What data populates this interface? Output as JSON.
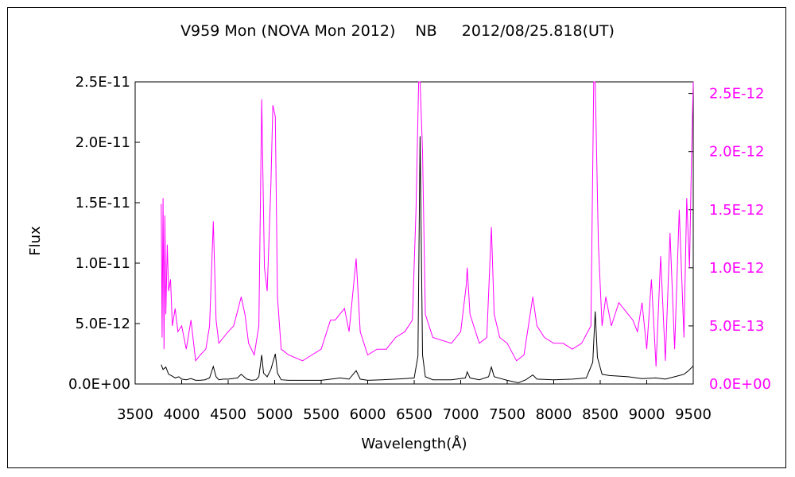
{
  "chart_data": {
    "type": "line",
    "title": "V959 Mon (NOVA Mon 2012)　 NB 　 2012/08/25.818(UT)",
    "xlabel": "Wavelength(Å)",
    "ylabel": "Flux",
    "xlim": [
      3500,
      9500
    ],
    "ylim": [
      0,
      2.5e-11
    ],
    "y2lim": [
      0,
      2.6e-12
    ],
    "x_ticks": [
      "3500",
      "4000",
      "4500",
      "5000",
      "5500",
      "6000",
      "6500",
      "7000",
      "7500",
      "8000",
      "8500",
      "9000",
      "9500"
    ],
    "y_ticks": [
      "0.0E+00",
      "5.0E-12",
      "1.0E-11",
      "1.5E-11",
      "2.0E-11",
      "2.5E-11"
    ],
    "y2_ticks": [
      "0.0E+00",
      "5.0E-13",
      "1.0E-12",
      "1.5E-12",
      "2.0E-12",
      "2.5E-12"
    ],
    "grid": false,
    "series": [
      {
        "axis": "left",
        "color": "#000000",
        "points": [
          [
            3780,
            1.6e-12
          ],
          [
            3800,
            1.2e-12
          ],
          [
            3830,
            1.4e-12
          ],
          [
            3860,
            8e-13
          ],
          [
            3890,
            7e-13
          ],
          [
            3930,
            5e-13
          ],
          [
            3970,
            6e-13
          ],
          [
            4000,
            4e-13
          ],
          [
            4050,
            3.5e-13
          ],
          [
            4100,
            4.5e-13
          ],
          [
            4150,
            3e-13
          ],
          [
            4200,
            3e-13
          ],
          [
            4250,
            3.5e-13
          ],
          [
            4300,
            5e-13
          ],
          [
            4340,
            1.45e-12
          ],
          [
            4370,
            6e-13
          ],
          [
            4400,
            3.5e-13
          ],
          [
            4450,
            4e-13
          ],
          [
            4500,
            4e-13
          ],
          [
            4600,
            5e-13
          ],
          [
            4640,
            8e-13
          ],
          [
            4700,
            4e-13
          ],
          [
            4750,
            3e-13
          ],
          [
            4800,
            3.5e-13
          ],
          [
            4830,
            6e-13
          ],
          [
            4861,
            2.4e-12
          ],
          [
            4880,
            9e-13
          ],
          [
            4920,
            6e-13
          ],
          [
            4959,
            1.2e-12
          ],
          [
            5007,
            2.5e-12
          ],
          [
            5030,
            9e-13
          ],
          [
            5070,
            3.5e-13
          ],
          [
            5150,
            3e-13
          ],
          [
            5300,
            3e-13
          ],
          [
            5500,
            3e-13
          ],
          [
            5650,
            4.5e-13
          ],
          [
            5700,
            5e-13
          ],
          [
            5760,
            4.5e-13
          ],
          [
            5800,
            4e-13
          ],
          [
            5876,
            1.1e-12
          ],
          [
            5920,
            4e-13
          ],
          [
            6000,
            3e-13
          ],
          [
            6150,
            3.5e-13
          ],
          [
            6300,
            4e-13
          ],
          [
            6400,
            4.5e-13
          ],
          [
            6500,
            5e-13
          ],
          [
            6540,
            2.3e-12
          ],
          [
            6563,
            2.05e-11
          ],
          [
            6590,
            2.4e-12
          ],
          [
            6620,
            6e-13
          ],
          [
            6700,
            3.5e-13
          ],
          [
            6900,
            3.5e-13
          ],
          [
            7050,
            5e-13
          ],
          [
            7070,
            1e-12
          ],
          [
            7100,
            5e-13
          ],
          [
            7200,
            3.5e-13
          ],
          [
            7300,
            6e-13
          ],
          [
            7330,
            1.4e-12
          ],
          [
            7360,
            6e-13
          ],
          [
            7500,
            3e-13
          ],
          [
            7620,
            1e-13
          ],
          [
            7700,
            3.5e-13
          ],
          [
            7775,
            7.5e-13
          ],
          [
            7820,
            4e-13
          ],
          [
            8000,
            3.5e-13
          ],
          [
            8200,
            4e-13
          ],
          [
            8350,
            5e-13
          ],
          [
            8420,
            1.8e-12
          ],
          [
            8446,
            6e-12
          ],
          [
            8470,
            2.2e-12
          ],
          [
            8520,
            8e-13
          ],
          [
            8600,
            7e-13
          ],
          [
            8800,
            6e-13
          ],
          [
            8950,
            4.5e-13
          ],
          [
            9100,
            5e-13
          ],
          [
            9200,
            4e-13
          ],
          [
            9300,
            6e-13
          ],
          [
            9400,
            8e-13
          ],
          [
            9450,
            1.1e-12
          ],
          [
            9500,
            1.5e-12
          ]
        ]
      },
      {
        "axis": "right",
        "color": "#ff00ff",
        "points": [
          [
            3780,
            1.55e-12
          ],
          [
            3790,
            4e-13
          ],
          [
            3800,
            1.6e-12
          ],
          [
            3810,
            3e-13
          ],
          [
            3820,
            1.45e-12
          ],
          [
            3830,
            6e-13
          ],
          [
            3845,
            1.2e-12
          ],
          [
            3860,
            8e-13
          ],
          [
            3880,
            9e-13
          ],
          [
            3900,
            5e-13
          ],
          [
            3930,
            6.5e-13
          ],
          [
            3960,
            4.5e-13
          ],
          [
            4000,
            5e-13
          ],
          [
            4050,
            3e-13
          ],
          [
            4100,
            5.5e-13
          ],
          [
            4150,
            2e-13
          ],
          [
            4200,
            2.5e-13
          ],
          [
            4260,
            3e-13
          ],
          [
            4300,
            5e-13
          ],
          [
            4340,
            1.4e-12
          ],
          [
            4370,
            5.5e-13
          ],
          [
            4400,
            3.5e-13
          ],
          [
            4450,
            4e-13
          ],
          [
            4500,
            4.5e-13
          ],
          [
            4560,
            5e-13
          ],
          [
            4640,
            7.5e-13
          ],
          [
            4680,
            6e-13
          ],
          [
            4720,
            3.5e-13
          ],
          [
            4780,
            2.5e-13
          ],
          [
            4830,
            5e-13
          ],
          [
            4861,
            2.45e-12
          ],
          [
            4890,
            1e-12
          ],
          [
            4920,
            8e-13
          ],
          [
            4959,
            1.7e-12
          ],
          [
            4980,
            2.4e-12
          ],
          [
            5007,
            2.3e-12
          ],
          [
            5030,
            7.5e-13
          ],
          [
            5070,
            3e-13
          ],
          [
            5150,
            2.5e-13
          ],
          [
            5300,
            2e-13
          ],
          [
            5400,
            2.5e-13
          ],
          [
            5500,
            3e-13
          ],
          [
            5600,
            5.5e-13
          ],
          [
            5650,
            5.5e-13
          ],
          [
            5700,
            6e-13
          ],
          [
            5750,
            6.5e-13
          ],
          [
            5800,
            4.5e-13
          ],
          [
            5876,
            1.08e-12
          ],
          [
            5920,
            4.5e-13
          ],
          [
            6000,
            2.5e-13
          ],
          [
            6100,
            3e-13
          ],
          [
            6200,
            3e-13
          ],
          [
            6300,
            4e-13
          ],
          [
            6400,
            4.5e-13
          ],
          [
            6480,
            5.5e-13
          ],
          [
            6520,
            1.5e-12
          ],
          [
            6548,
            2.6e-12
          ],
          [
            6563,
            2.6e-12
          ],
          [
            6590,
            2e-12
          ],
          [
            6620,
            6e-13
          ],
          [
            6700,
            4e-13
          ],
          [
            6900,
            3.5e-13
          ],
          [
            7000,
            4.5e-13
          ],
          [
            7060,
            8.5e-13
          ],
          [
            7070,
            1e-12
          ],
          [
            7100,
            6e-13
          ],
          [
            7200,
            3.5e-13
          ],
          [
            7280,
            4e-13
          ],
          [
            7330,
            1.35e-12
          ],
          [
            7360,
            6e-13
          ],
          [
            7420,
            4e-13
          ],
          [
            7500,
            3.5e-13
          ],
          [
            7600,
            2e-13
          ],
          [
            7680,
            2.5e-13
          ],
          [
            7775,
            7.5e-13
          ],
          [
            7820,
            5e-13
          ],
          [
            7900,
            4e-13
          ],
          [
            8000,
            3.5e-13
          ],
          [
            8100,
            3.5e-13
          ],
          [
            8200,
            3e-13
          ],
          [
            8300,
            3.5e-13
          ],
          [
            8400,
            5e-13
          ],
          [
            8430,
            2.6e-12
          ],
          [
            8446,
            2.6e-12
          ],
          [
            8480,
            1.2e-12
          ],
          [
            8520,
            5e-13
          ],
          [
            8560,
            7.5e-13
          ],
          [
            8620,
            5e-13
          ],
          [
            8700,
            7e-13
          ],
          [
            8800,
            6e-13
          ],
          [
            8850,
            5.5e-13
          ],
          [
            8900,
            4.5e-13
          ],
          [
            8950,
            7e-13
          ],
          [
            9000,
            3e-13
          ],
          [
            9050,
            9e-13
          ],
          [
            9100,
            1.5e-13
          ],
          [
            9150,
            1.1e-12
          ],
          [
            9200,
            2e-13
          ],
          [
            9250,
            1.3e-12
          ],
          [
            9300,
            3e-13
          ],
          [
            9350,
            1.5e-12
          ],
          [
            9400,
            4e-13
          ],
          [
            9430,
            1.6e-12
          ],
          [
            9460,
            1e-12
          ],
          [
            9480,
            1.9e-12
          ],
          [
            9500,
            2.6e-12
          ]
        ]
      }
    ]
  }
}
